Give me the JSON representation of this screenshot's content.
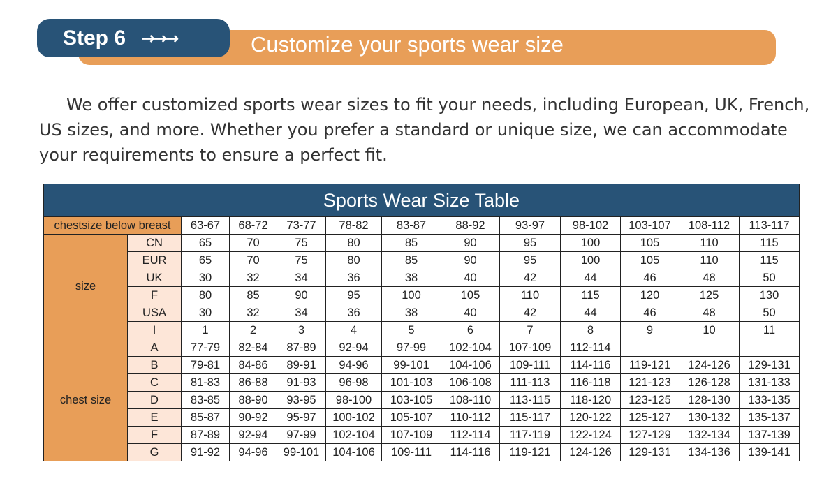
{
  "header": {
    "step_label": "Step 6",
    "arrows": "→→→",
    "title": "Customize your sports wear size",
    "colors": {
      "navy": "#285377",
      "orange": "#e89e58"
    }
  },
  "intro": "We offer customized sports wear sizes to fit your needs, including European, UK, French, US sizes, and more. Whether you prefer a standard or unique size, we can accommodate your requirements to ensure a perfect fit.",
  "table": {
    "caption": "Sports Wear Size Table",
    "header_label": "chestsize below breast",
    "columns": [
      "63-67",
      "68-72",
      "73-77",
      "78-82",
      "83-87",
      "88-92",
      "93-97",
      "98-102",
      "103-107",
      "108-112",
      "113-117"
    ],
    "groups": [
      {
        "label": "size",
        "rows": [
          {
            "label": "CN",
            "values": [
              "65",
              "70",
              "75",
              "80",
              "85",
              "90",
              "95",
              "100",
              "105",
              "110",
              "115"
            ]
          },
          {
            "label": "EUR",
            "values": [
              "65",
              "70",
              "75",
              "80",
              "85",
              "90",
              "95",
              "100",
              "105",
              "110",
              "115"
            ]
          },
          {
            "label": "UK",
            "values": [
              "30",
              "32",
              "34",
              "36",
              "38",
              "40",
              "42",
              "44",
              "46",
              "48",
              "50"
            ]
          },
          {
            "label": "F",
            "values": [
              "80",
              "85",
              "90",
              "95",
              "100",
              "105",
              "110",
              "115",
              "120",
              "125",
              "130"
            ]
          },
          {
            "label": "USA",
            "values": [
              "30",
              "32",
              "34",
              "36",
              "38",
              "40",
              "42",
              "44",
              "46",
              "48",
              "50"
            ]
          },
          {
            "label": "I",
            "values": [
              "1",
              "2",
              "3",
              "4",
              "5",
              "6",
              "7",
              "8",
              "9",
              "10",
              "11"
            ]
          }
        ]
      },
      {
        "label": "chest size",
        "rows": [
          {
            "label": "A",
            "values": [
              "77-79",
              "82-84",
              "87-89",
              "92-94",
              "97-99",
              "102-104",
              "107-109",
              "112-114",
              "",
              "",
              ""
            ]
          },
          {
            "label": "B",
            "values": [
              "79-81",
              "84-86",
              "89-91",
              "94-96",
              "99-101",
              "104-106",
              "109-111",
              "114-116",
              "119-121",
              "124-126",
              "129-131"
            ]
          },
          {
            "label": "C",
            "values": [
              "81-83",
              "86-88",
              "91-93",
              "96-98",
              "101-103",
              "106-108",
              "111-113",
              "116-118",
              "121-123",
              "126-128",
              "131-133"
            ]
          },
          {
            "label": "D",
            "values": [
              "83-85",
              "88-90",
              "93-95",
              "98-100",
              "103-105",
              "108-110",
              "113-115",
              "118-120",
              "123-125",
              "128-130",
              "133-135"
            ]
          },
          {
            "label": "E",
            "values": [
              "85-87",
              "90-92",
              "95-97",
              "100-102",
              "105-107",
              "110-112",
              "115-117",
              "120-122",
              "125-127",
              "130-132",
              "135-137"
            ]
          },
          {
            "label": "F",
            "values": [
              "87-89",
              "92-94",
              "97-99",
              "102-104",
              "107-109",
              "112-114",
              "117-119",
              "122-124",
              "127-129",
              "132-134",
              "137-139"
            ]
          },
          {
            "label": "G",
            "values": [
              "91-92",
              "94-96",
              "99-101",
              "104-106",
              "109-111",
              "114-116",
              "119-121",
              "124-126",
              "129-131",
              "134-136",
              "139-141"
            ]
          }
        ]
      }
    ]
  }
}
